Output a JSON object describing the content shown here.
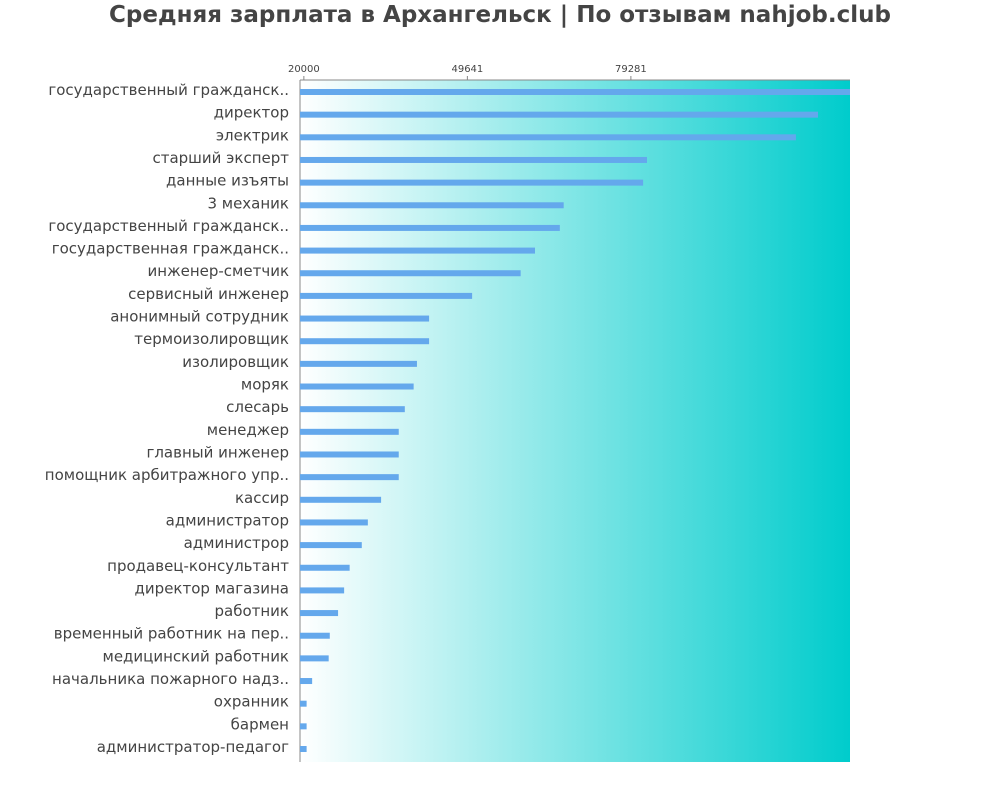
{
  "title": "Средняя зарплата в Архангельск | По отзывам nahjob.club",
  "chart_data": {
    "type": "bar",
    "orientation": "horizontal",
    "title": "Средняя зарплата в Архангельск | По отзывам nahjob.club",
    "xlim": [
      19300,
      119000
    ],
    "xticks": [
      20000,
      49641,
      79281
    ],
    "bar_color": "#64a8ec",
    "background_gradient": [
      "#ffffff",
      "#00cccc"
    ],
    "categories": [
      "государственный гражданск..",
      "директор",
      "электрик",
      "старший эксперт",
      "данные изъяты",
      "3 механик",
      "государственный гражданск..",
      "государственная гражданск..",
      "инженер-сметчик",
      "сервисный инженер",
      "анонимный сотрудник",
      "термоизолировщик",
      "изолировщик",
      "моряк",
      "слесарь",
      "менеджер",
      "главный инженер",
      "помощник арбитражного упр..",
      "кассир",
      "администратор",
      "администрор",
      "продавец-консультант",
      "директор магазина",
      "работник",
      "временный работник на пер..",
      "медицинский работник",
      "начальника пожарного надз..",
      "охранник",
      "бармен",
      "администратор-педагог"
    ],
    "values": [
      119000,
      113200,
      109200,
      82200,
      81500,
      67100,
      66400,
      61900,
      59300,
      50500,
      42700,
      42700,
      40500,
      39900,
      38300,
      37200,
      37200,
      37200,
      34000,
      31600,
      30500,
      28300,
      27300,
      26200,
      24700,
      24500,
      21500,
      20500,
      20500,
      20500
    ]
  }
}
